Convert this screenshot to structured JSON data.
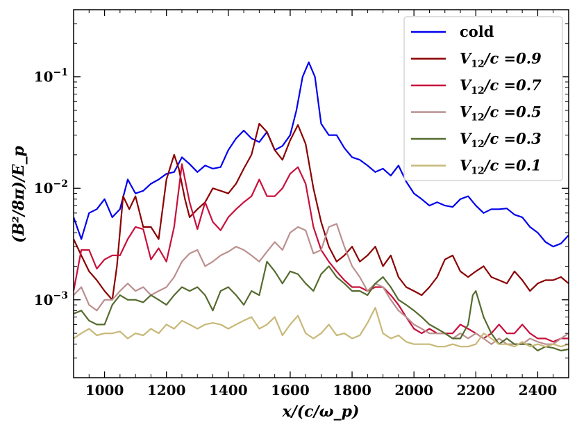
{
  "chart_data": {
    "type": "line",
    "title": "",
    "xlabel": "x/(c/ω_p)",
    "ylabel": "(B²/8π)/E_p",
    "xlim": [
      900,
      2500
    ],
    "ylim": [
      0.0002,
      0.4
    ],
    "yscale": "log",
    "xticks": [
      1000,
      1200,
      1400,
      1600,
      1800,
      2000,
      2200,
      2400
    ],
    "xtick_labels": [
      "1000",
      "1200",
      "1400",
      "1600",
      "1800",
      "2000",
      "2200",
      "2400"
    ],
    "yticks": [
      0.001,
      0.01,
      0.1
    ],
    "ytick_labels": [
      {
        "base": "10",
        "exp": "−3"
      },
      {
        "base": "10",
        "exp": "−2"
      },
      {
        "base": "10",
        "exp": "−1"
      }
    ],
    "legend_position": "top-right",
    "series": [
      {
        "name": "cold",
        "color": "#0000ee",
        "x": [
          900,
          925,
          950,
          975,
          1000,
          1025,
          1050,
          1075,
          1100,
          1125,
          1150,
          1175,
          1200,
          1225,
          1250,
          1275,
          1300,
          1325,
          1350,
          1375,
          1400,
          1425,
          1450,
          1475,
          1500,
          1525,
          1550,
          1575,
          1600,
          1620,
          1640,
          1660,
          1680,
          1700,
          1725,
          1750,
          1775,
          1800,
          1825,
          1850,
          1875,
          1900,
          1925,
          1950,
          1975,
          2000,
          2025,
          2050,
          2075,
          2100,
          2125,
          2150,
          2175,
          2200,
          2225,
          2250,
          2275,
          2300,
          2325,
          2350,
          2375,
          2400,
          2425,
          2450,
          2475,
          2500
        ],
        "y": [
          0.0055,
          0.0035,
          0.006,
          0.0065,
          0.008,
          0.0055,
          0.0065,
          0.012,
          0.009,
          0.0095,
          0.011,
          0.012,
          0.0135,
          0.014,
          0.019,
          0.0165,
          0.014,
          0.016,
          0.015,
          0.0155,
          0.022,
          0.028,
          0.033,
          0.028,
          0.026,
          0.032,
          0.022,
          0.024,
          0.03,
          0.05,
          0.1,
          0.135,
          0.1,
          0.038,
          0.03,
          0.03,
          0.023,
          0.019,
          0.018,
          0.016,
          0.014,
          0.015,
          0.013,
          0.016,
          0.0115,
          0.009,
          0.008,
          0.007,
          0.0075,
          0.007,
          0.0068,
          0.008,
          0.0085,
          0.007,
          0.006,
          0.0065,
          0.0065,
          0.0066,
          0.0058,
          0.0055,
          0.0045,
          0.004,
          0.0033,
          0.003,
          0.0032,
          0.0038
        ]
      },
      {
        "name": "V12/c =0.9",
        "label_main": "V",
        "label_sub": "12",
        "label_rest": "/c =0.9",
        "color": "#8b0000",
        "x": [
          900,
          925,
          950,
          975,
          1000,
          1025,
          1040,
          1060,
          1080,
          1100,
          1125,
          1150,
          1175,
          1200,
          1225,
          1240,
          1260,
          1275,
          1300,
          1325,
          1350,
          1375,
          1400,
          1425,
          1450,
          1475,
          1500,
          1525,
          1550,
          1575,
          1600,
          1625,
          1650,
          1675,
          1700,
          1725,
          1750,
          1775,
          1800,
          1825,
          1850,
          1875,
          1900,
          1925,
          1950,
          1975,
          2000,
          2025,
          2050,
          2075,
          2100,
          2125,
          2150,
          2175,
          2200,
          2225,
          2250,
          2275,
          2300,
          2325,
          2350,
          2375,
          2400,
          2425,
          2450,
          2475,
          2500
        ],
        "y": [
          0.0035,
          0.0025,
          0.0018,
          0.0015,
          0.0012,
          0.001,
          0.002,
          0.0085,
          0.0065,
          0.0085,
          0.0045,
          0.0045,
          0.0035,
          0.012,
          0.02,
          0.015,
          0.008,
          0.0055,
          0.0065,
          0.0075,
          0.01,
          0.0095,
          0.009,
          0.011,
          0.015,
          0.02,
          0.038,
          0.032,
          0.022,
          0.018,
          0.027,
          0.037,
          0.025,
          0.01,
          0.005,
          0.003,
          0.0022,
          0.0025,
          0.003,
          0.0022,
          0.0025,
          0.003,
          0.002,
          0.0025,
          0.0016,
          0.0013,
          0.0012,
          0.0011,
          0.0013,
          0.0016,
          0.0023,
          0.0025,
          0.0018,
          0.0016,
          0.0018,
          0.002,
          0.0016,
          0.0015,
          0.0014,
          0.0018,
          0.0015,
          0.0012,
          0.0014,
          0.0015,
          0.0015,
          0.0016,
          0.0014
        ]
      },
      {
        "name": "V12/c =0.7",
        "label_main": "V",
        "label_sub": "12",
        "label_rest": "/c =0.7",
        "color": "#c8103c",
        "x": [
          900,
          925,
          950,
          975,
          1000,
          1025,
          1050,
          1075,
          1100,
          1125,
          1150,
          1175,
          1200,
          1225,
          1250,
          1275,
          1300,
          1325,
          1350,
          1375,
          1400,
          1425,
          1450,
          1475,
          1500,
          1525,
          1550,
          1575,
          1600,
          1625,
          1650,
          1675,
          1700,
          1725,
          1750,
          1775,
          1800,
          1825,
          1850,
          1875,
          1900,
          1925,
          1950,
          1975,
          2000,
          2025,
          2050,
          2075,
          2100,
          2125,
          2150,
          2175,
          2200,
          2225,
          2250,
          2275,
          2300,
          2325,
          2350,
          2375,
          2400,
          2425,
          2450,
          2475,
          2500
        ],
        "y": [
          0.0012,
          0.0028,
          0.0028,
          0.0019,
          0.0023,
          0.0025,
          0.0025,
          0.0035,
          0.0045,
          0.0043,
          0.0023,
          0.0029,
          0.0022,
          0.0045,
          0.0165,
          0.0075,
          0.0043,
          0.0075,
          0.005,
          0.0042,
          0.0055,
          0.0065,
          0.0075,
          0.0085,
          0.012,
          0.0085,
          0.0085,
          0.01,
          0.0135,
          0.0155,
          0.011,
          0.0045,
          0.0028,
          0.0022,
          0.0018,
          0.0015,
          0.0013,
          0.0013,
          0.0012,
          0.0013,
          0.0013,
          0.0011,
          0.0009,
          0.0007,
          0.00055,
          0.0005,
          0.00055,
          0.0005,
          0.0005,
          0.0005,
          0.0006,
          0.00055,
          0.0005,
          0.00045,
          0.0005,
          0.0006,
          0.0005,
          0.0005,
          0.0006,
          0.0005,
          0.00045,
          0.00045,
          0.00042,
          0.00045,
          0.00045
        ]
      },
      {
        "name": "V12/c =0.5",
        "label_main": "V",
        "label_sub": "12",
        "label_rest": "/c =0.5",
        "color": "#bc8f8f",
        "x": [
          900,
          925,
          950,
          975,
          1000,
          1025,
          1050,
          1075,
          1100,
          1125,
          1150,
          1175,
          1200,
          1225,
          1250,
          1275,
          1300,
          1325,
          1350,
          1375,
          1400,
          1425,
          1450,
          1475,
          1500,
          1525,
          1550,
          1575,
          1600,
          1625,
          1650,
          1675,
          1700,
          1725,
          1750,
          1775,
          1800,
          1825,
          1850,
          1875,
          1900,
          1925,
          1950,
          1975,
          2000,
          2025,
          2050,
          2075,
          2100,
          2125,
          2150,
          2175,
          2200,
          2225,
          2250,
          2275,
          2300,
          2325,
          2350,
          2375,
          2400,
          2425,
          2450,
          2475,
          2500
        ],
        "y": [
          0.0011,
          0.0013,
          0.0009,
          0.0008,
          0.001,
          0.001,
          0.0012,
          0.0014,
          0.0012,
          0.0013,
          0.0011,
          0.0012,
          0.0013,
          0.0016,
          0.0022,
          0.0026,
          0.0028,
          0.002,
          0.0022,
          0.0025,
          0.0027,
          0.003,
          0.0028,
          0.0025,
          0.0022,
          0.0027,
          0.0033,
          0.0028,
          0.004,
          0.0045,
          0.0042,
          0.0026,
          0.0028,
          0.0045,
          0.0048,
          0.003,
          0.002,
          0.0016,
          0.0012,
          0.0014,
          0.0013,
          0.001,
          0.0008,
          0.0007,
          0.0006,
          0.00055,
          0.0005,
          0.0005,
          0.0005,
          0.00045,
          0.0005,
          0.00045,
          0.0005,
          0.00045,
          0.0004,
          0.00045,
          0.0004,
          0.0004,
          0.0004,
          0.00045,
          0.00042,
          0.0004,
          0.0004,
          0.00045,
          0.0005
        ]
      },
      {
        "name": "V12/c =0.3",
        "label_main": "V",
        "label_sub": "12",
        "label_rest": "/c =0.3",
        "color": "#556b2f",
        "x": [
          900,
          925,
          950,
          975,
          1000,
          1025,
          1050,
          1075,
          1100,
          1125,
          1150,
          1175,
          1200,
          1225,
          1250,
          1275,
          1300,
          1325,
          1350,
          1375,
          1400,
          1425,
          1450,
          1475,
          1500,
          1525,
          1550,
          1575,
          1600,
          1625,
          1650,
          1675,
          1700,
          1725,
          1750,
          1775,
          1800,
          1825,
          1850,
          1875,
          1900,
          1925,
          1950,
          1975,
          2000,
          2025,
          2050,
          2075,
          2100,
          2125,
          2150,
          2175,
          2190,
          2200,
          2225,
          2250,
          2275,
          2300,
          2325,
          2350,
          2375,
          2400,
          2425,
          2450,
          2475,
          2500
        ],
        "y": [
          0.00075,
          0.0008,
          0.00065,
          0.0006,
          0.0006,
          0.0009,
          0.0011,
          0.001,
          0.001,
          0.00095,
          0.0011,
          0.001,
          0.0009,
          0.0011,
          0.0013,
          0.0012,
          0.0013,
          0.0011,
          0.0008,
          0.0012,
          0.0013,
          0.0011,
          0.0009,
          0.0012,
          0.0011,
          0.0022,
          0.0018,
          0.0014,
          0.0018,
          0.0017,
          0.0014,
          0.0012,
          0.0017,
          0.002,
          0.0016,
          0.0014,
          0.0012,
          0.0012,
          0.0011,
          0.0014,
          0.0016,
          0.0013,
          0.001,
          0.0009,
          0.0008,
          0.0007,
          0.0006,
          0.00055,
          0.0005,
          0.00045,
          0.00045,
          0.0006,
          0.0011,
          0.0012,
          0.0007,
          0.0005,
          0.0004,
          0.00045,
          0.0004,
          0.0004,
          0.0004,
          0.00035,
          0.00038,
          0.00037,
          0.00035,
          0.00036
        ]
      },
      {
        "name": "V12/c =0.1",
        "label_main": "V",
        "label_sub": "12",
        "label_rest": "/c =0.1",
        "color": "#c8b878",
        "x": [
          900,
          925,
          950,
          975,
          1000,
          1025,
          1050,
          1075,
          1100,
          1125,
          1150,
          1175,
          1200,
          1225,
          1250,
          1275,
          1300,
          1325,
          1350,
          1375,
          1400,
          1425,
          1450,
          1475,
          1500,
          1525,
          1550,
          1575,
          1600,
          1625,
          1650,
          1675,
          1700,
          1725,
          1750,
          1775,
          1800,
          1825,
          1850,
          1875,
          1900,
          1925,
          1950,
          1975,
          2000,
          2025,
          2050,
          2075,
          2100,
          2125,
          2150,
          2175,
          2200,
          2225,
          2250,
          2275,
          2300,
          2325,
          2350,
          2375,
          2400,
          2425,
          2450,
          2475,
          2500
        ],
        "y": [
          0.00045,
          0.0005,
          0.00055,
          0.00048,
          0.0005,
          0.0005,
          0.00052,
          0.00045,
          0.0005,
          0.00048,
          0.00055,
          0.0005,
          0.0006,
          0.00055,
          0.00065,
          0.0006,
          0.00055,
          0.0006,
          0.00062,
          0.0006,
          0.00055,
          0.0006,
          0.00065,
          0.0007,
          0.00055,
          0.0006,
          0.0007,
          0.00048,
          0.0006,
          0.00072,
          0.0005,
          0.00045,
          0.0005,
          0.0006,
          0.00048,
          0.0005,
          0.00045,
          0.00048,
          0.00062,
          0.00085,
          0.0005,
          0.00045,
          0.00048,
          0.00042,
          0.0004,
          0.0004,
          0.0004,
          0.00038,
          0.00038,
          0.0004,
          0.00038,
          0.00038,
          0.0004,
          0.0005,
          0.00045,
          0.0004,
          0.0004,
          0.00038,
          0.00042,
          0.00038,
          0.0004,
          0.00038,
          0.0004,
          0.00038,
          0.0004
        ]
      }
    ]
  }
}
